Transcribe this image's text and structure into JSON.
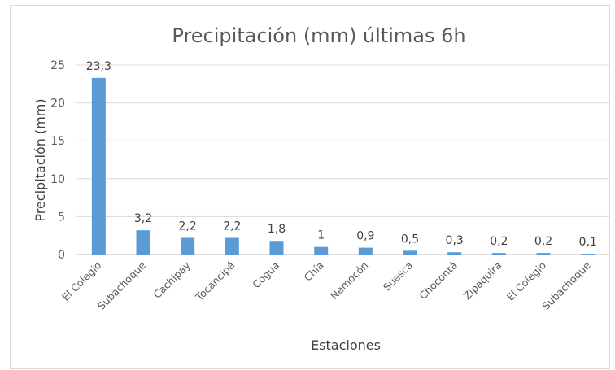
{
  "chart_data": {
    "type": "bar",
    "title": "Precipitación (mm) últimas 6h",
    "xlabel": "Estaciones",
    "ylabel": "Precipitación (mm)",
    "ylim": [
      0,
      25
    ],
    "yticks": [
      "0",
      "5",
      "10",
      "15",
      "20",
      "25"
    ],
    "grid": true,
    "legend": "none",
    "bar_color": "#5b9bd5",
    "categories": [
      "El Colegio",
      "Subachoque",
      "Cachipay",
      "Tocancipá",
      "Cogua",
      "Chía",
      "Nemocón",
      "Suesca",
      "Chocontá",
      "Zipaquirá",
      "El Colegio",
      "Subachoque"
    ],
    "values": [
      23.3,
      3.2,
      2.2,
      2.2,
      1.8,
      1,
      0.9,
      0.5,
      0.3,
      0.2,
      0.2,
      0.1
    ],
    "data_labels": [
      "23,3",
      "3,2",
      "2,2",
      "2,2",
      "1,8",
      "1",
      "0,9",
      "0,5",
      "0,3",
      "0,2",
      "0,2",
      "0,1"
    ]
  }
}
